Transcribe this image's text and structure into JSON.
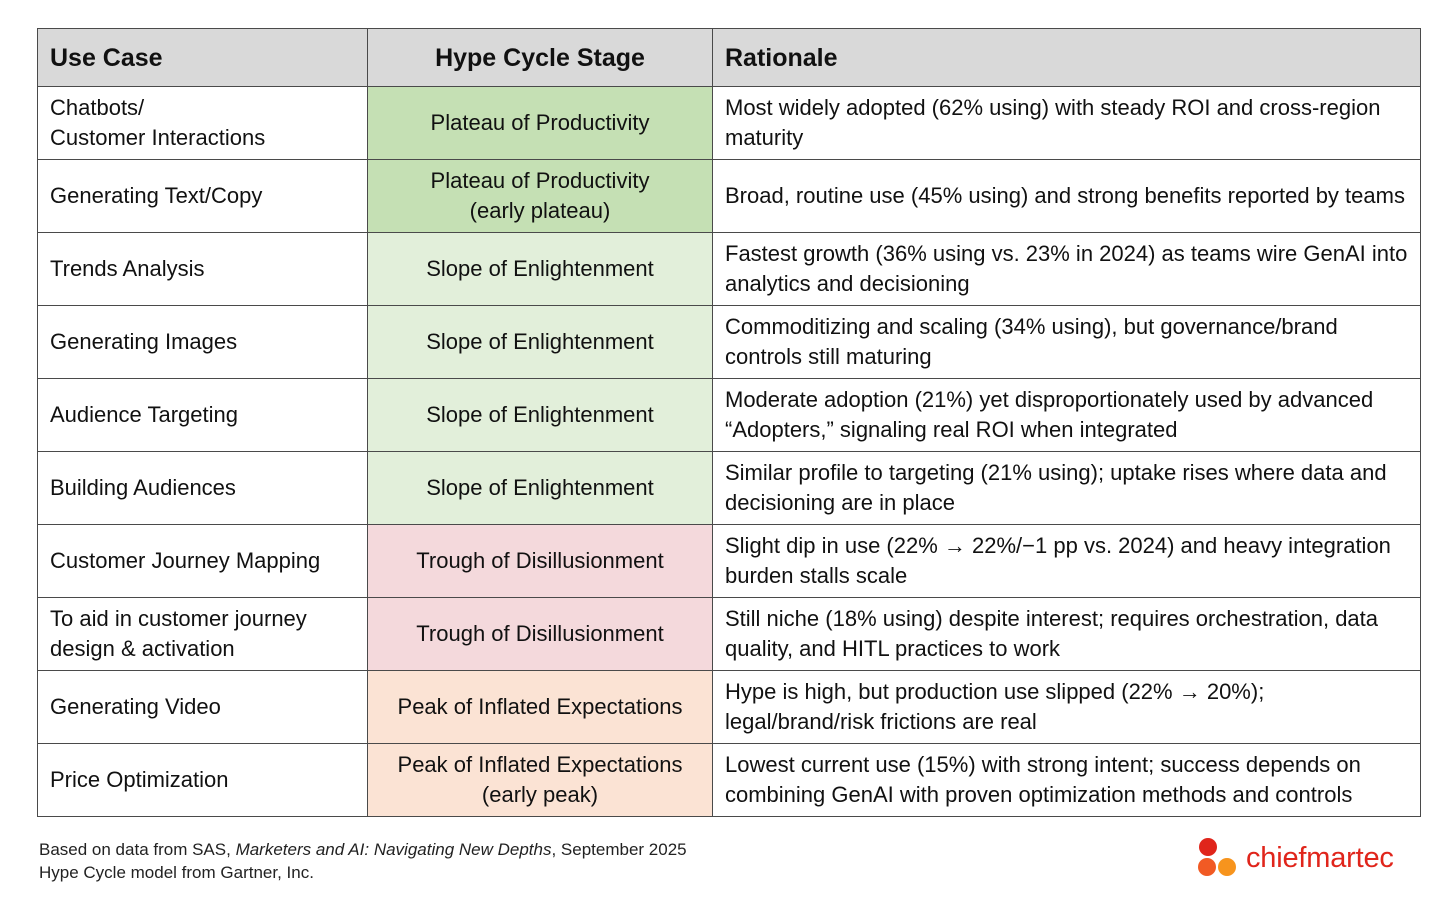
{
  "table": {
    "headers": [
      "Use Case",
      "Hype Cycle Stage",
      "Rationale"
    ],
    "rows": [
      {
        "use_case": [
          "Chatbots/",
          "Customer Interactions"
        ],
        "stage": [
          "Plateau of Productivity"
        ],
        "stage_color": "#c5e0b4",
        "rationale": "Most widely adopted (62% using) with steady ROI and cross-region maturity"
      },
      {
        "use_case": [
          "Generating Text/Copy"
        ],
        "stage": [
          "Plateau of Productivity",
          "(early plateau)"
        ],
        "stage_color": "#c5e0b4",
        "rationale": "Broad, routine use (45% using) and strong benefits reported by teams"
      },
      {
        "use_case": [
          "Trends Analysis"
        ],
        "stage": [
          "Slope of Enlightenment"
        ],
        "stage_color": "#e2efda",
        "rationale": "Fastest growth (36% using vs. 23% in 2024) as teams wire GenAI into analytics and decisioning"
      },
      {
        "use_case": [
          "Generating Images"
        ],
        "stage": [
          "Slope of Enlightenment"
        ],
        "stage_color": "#e2efda",
        "rationale": "Commoditizing and scaling (34% using), but governance/brand controls still maturing"
      },
      {
        "use_case": [
          "Audience Targeting"
        ],
        "stage": [
          "Slope of Enlightenment"
        ],
        "stage_color": "#e2efda",
        "rationale": "Moderate adoption (21%) yet disproportionately used by advanced “Adopters,” signaling real ROI when integrated"
      },
      {
        "use_case": [
          "Building Audiences"
        ],
        "stage": [
          "Slope of Enlightenment"
        ],
        "stage_color": "#e2efda",
        "rationale": "Similar profile to targeting (21% using); uptake rises where data and decisioning are in place"
      },
      {
        "use_case": [
          "Customer Journey Mapping"
        ],
        "stage": [
          "Trough of Disillusionment"
        ],
        "stage_color": "#f4d9dc",
        "rationale": "Slight dip in use (22% → 22%/−1 pp vs. 2024) and heavy integration burden stalls scale"
      },
      {
        "use_case": [
          "To aid in customer journey",
          "design & activation"
        ],
        "stage": [
          "Trough of Disillusionment"
        ],
        "stage_color": "#f4d9dc",
        "rationale": "Still niche (18% using) despite interest; requires orchestration, data quality, and HITL practices to work"
      },
      {
        "use_case": [
          "Generating Video"
        ],
        "stage": [
          "Peak of Inflated Expectations"
        ],
        "stage_color": "#fbe3d4",
        "rationale": "Hype is high, but production use slipped (22% → 20%); legal/brand/risk frictions are real"
      },
      {
        "use_case": [
          "Price Optimization"
        ],
        "stage": [
          "Peak of Inflated Expectations",
          "(early peak)"
        ],
        "stage_color": "#fbe3d4",
        "rationale": "Lowest current use (15%) with strong intent; success depends on combining GenAI with proven optimization methods and controls"
      }
    ]
  },
  "footer": {
    "source_prefix": "Based on data from SAS, ",
    "source_title": "Marketers and AI: Navigating New Depths",
    "source_suffix": ", September 2025",
    "model_note": "Hype Cycle model from Gartner, Inc."
  },
  "logo": {
    "text": "chiefmartec",
    "icon": "three-dots-logo-icon",
    "colors": [
      "#e0251b",
      "#f15a24",
      "#f7941d"
    ]
  }
}
